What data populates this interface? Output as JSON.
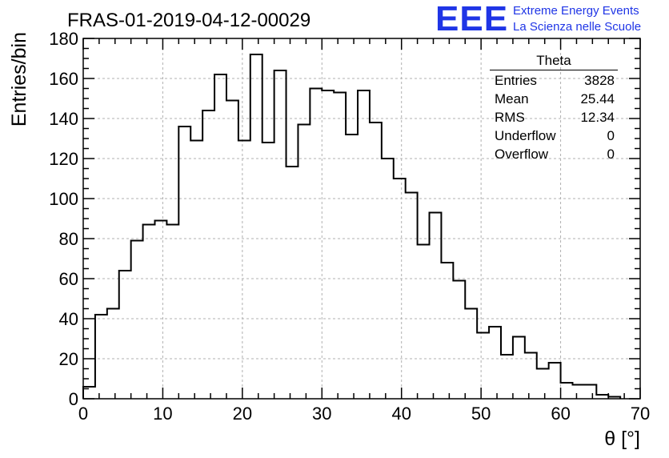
{
  "chart_data": {
    "type": "histogram",
    "title": "FRAS-01-2019-04-12-00029",
    "xlabel": "θ [°]",
    "ylabel": "Entries/bin",
    "xlim": [
      0,
      70
    ],
    "ylim": [
      0,
      180
    ],
    "x_ticks": [
      0,
      10,
      20,
      30,
      40,
      50,
      60,
      70
    ],
    "y_ticks": [
      0,
      20,
      40,
      60,
      80,
      100,
      120,
      140,
      160,
      180
    ],
    "grid": true,
    "bin_width": 1.5,
    "bin_edges_start": 0,
    "values": [
      6,
      42,
      45,
      64,
      79,
      87,
      89,
      87,
      136,
      129,
      144,
      162,
      149,
      129,
      172,
      128,
      164,
      116,
      137,
      155,
      154,
      153,
      132,
      154,
      138,
      120,
      110,
      103,
      77,
      93,
      68,
      59,
      45,
      33,
      36,
      22,
      31,
      23,
      15,
      18,
      8,
      7,
      7,
      2,
      1
    ]
  },
  "stats": {
    "title": "Theta",
    "rows": [
      {
        "label": "Entries",
        "value": "3828"
      },
      {
        "label": "Mean",
        "value": "25.44"
      },
      {
        "label": "RMS",
        "value": "12.34"
      },
      {
        "label": "Underflow",
        "value": "0"
      },
      {
        "label": "Overflow",
        "value": "0"
      }
    ]
  },
  "logo": {
    "mark": "EEE",
    "line1": "Extreme Energy Events",
    "line2": "La Scienza nelle Scuole",
    "color": "#1f35e6"
  }
}
